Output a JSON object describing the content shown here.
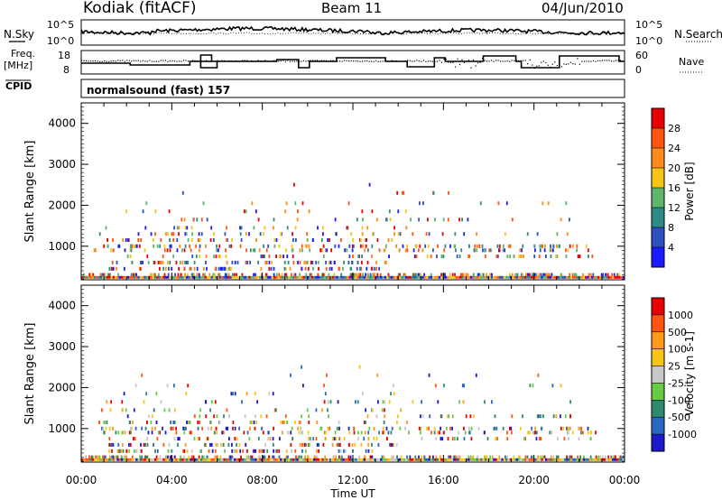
{
  "header": {
    "station": "Kodiak (fitACF)",
    "beam": "Beam 11",
    "date": "04/Jun/2010"
  },
  "noise_panel": {
    "left_label": "N.Sky",
    "right_label": "N.Search",
    "left_ticks": [
      "10^5",
      "10^0"
    ],
    "right_ticks": [
      "10^5",
      "10^0"
    ]
  },
  "freq_panel": {
    "left_label_1": "Freq.",
    "left_label_2": "[MHz]",
    "right_label": "Nave",
    "left_ticks": [
      "18",
      "8"
    ],
    "right_ticks": [
      "60",
      "0"
    ]
  },
  "cpid": {
    "label": "CPID",
    "program": "normalsound (fast) 157"
  },
  "chart_data": [
    {
      "type": "heatmap",
      "name": "power",
      "ylabel": "Slant Range [km]",
      "xlabel": "Time UT",
      "ylim": [
        180,
        4500
      ],
      "yticks": [
        "1000",
        "2000",
        "3000",
        "4000"
      ],
      "xticks": [
        "00:00",
        "04:00",
        "08:00",
        "12:00",
        "16:00",
        "20:00",
        "00:00"
      ],
      "colorbar": {
        "label": "Power [dB]",
        "ticks": [
          "4",
          "8",
          "12",
          "16",
          "20",
          "24",
          "28"
        ],
        "colors": [
          "#1a1aff",
          "#2a4fc0",
          "#2e8a84",
          "#5fb56a",
          "#f5c518",
          "#ff8c1a",
          "#ff5510",
          "#e60000"
        ]
      },
      "echo_ranges": [
        {
          "range": 300,
          "start": 0.0,
          "end": 1.0,
          "density": 0.9
        },
        {
          "range": 450,
          "start": 0.05,
          "end": 0.55,
          "density": 0.6
        },
        {
          "range": 600,
          "start": 0.05,
          "end": 0.58,
          "density": 0.55
        },
        {
          "range": 750,
          "start": 0.05,
          "end": 0.95,
          "density": 0.35
        },
        {
          "range": 900,
          "start": 0.02,
          "end": 0.95,
          "density": 0.4
        },
        {
          "range": 1000,
          "start": 0.02,
          "end": 0.95,
          "density": 0.45
        },
        {
          "range": 1150,
          "start": 0.03,
          "end": 0.6,
          "density": 0.35
        },
        {
          "range": 1300,
          "start": 0.03,
          "end": 0.9,
          "density": 0.25
        },
        {
          "range": 1450,
          "start": 0.03,
          "end": 0.6,
          "density": 0.2
        },
        {
          "range": 1650,
          "start": 0.03,
          "end": 0.9,
          "density": 0.15
        },
        {
          "range": 1850,
          "start": 0.05,
          "end": 0.6,
          "density": 0.12
        },
        {
          "range": 2050,
          "start": 0.05,
          "end": 0.9,
          "density": 0.08
        },
        {
          "range": 2300,
          "start": 0.1,
          "end": 0.9,
          "density": 0.04
        },
        {
          "range": 2500,
          "start": 0.3,
          "end": 0.55,
          "density": 0.03
        }
      ]
    },
    {
      "type": "heatmap",
      "name": "velocity",
      "ylabel": "Slant Range [km]",
      "xlabel": "Time UT",
      "ylim": [
        180,
        4500
      ],
      "yticks": [
        "1000",
        "2000",
        "3000",
        "4000"
      ],
      "xticks": [
        "00:00",
        "04:00",
        "08:00",
        "12:00",
        "16:00",
        "20:00",
        "00:00"
      ],
      "colorbar": {
        "label": "Velocity [m s-1]",
        "ticks": [
          "1000",
          "500",
          "100",
          "25",
          "-25",
          "-100",
          "-500",
          "-1000"
        ],
        "colors": [
          "#1a1acc",
          "#2a68c0",
          "#2e8a6e",
          "#66cc44",
          "#c8c8c8",
          "#f5c518",
          "#ff9a1a",
          "#ff5510",
          "#e60000"
        ]
      },
      "echo_ranges": [
        {
          "range": 300,
          "start": 0.0,
          "end": 1.0,
          "density": 0.9
        },
        {
          "range": 450,
          "start": 0.05,
          "end": 0.55,
          "density": 0.6
        },
        {
          "range": 600,
          "start": 0.05,
          "end": 0.58,
          "density": 0.55
        },
        {
          "range": 750,
          "start": 0.05,
          "end": 0.95,
          "density": 0.35
        },
        {
          "range": 900,
          "start": 0.02,
          "end": 0.95,
          "density": 0.4
        },
        {
          "range": 1000,
          "start": 0.02,
          "end": 0.95,
          "density": 0.45
        },
        {
          "range": 1150,
          "start": 0.03,
          "end": 0.6,
          "density": 0.35
        },
        {
          "range": 1300,
          "start": 0.03,
          "end": 0.9,
          "density": 0.25
        },
        {
          "range": 1450,
          "start": 0.03,
          "end": 0.6,
          "density": 0.2
        },
        {
          "range": 1650,
          "start": 0.03,
          "end": 0.9,
          "density": 0.15
        },
        {
          "range": 1850,
          "start": 0.05,
          "end": 0.6,
          "density": 0.12
        },
        {
          "range": 2050,
          "start": 0.05,
          "end": 0.9,
          "density": 0.08
        },
        {
          "range": 2300,
          "start": 0.1,
          "end": 0.9,
          "density": 0.04
        },
        {
          "range": 2500,
          "start": 0.3,
          "end": 0.55,
          "density": 0.03
        }
      ]
    }
  ]
}
